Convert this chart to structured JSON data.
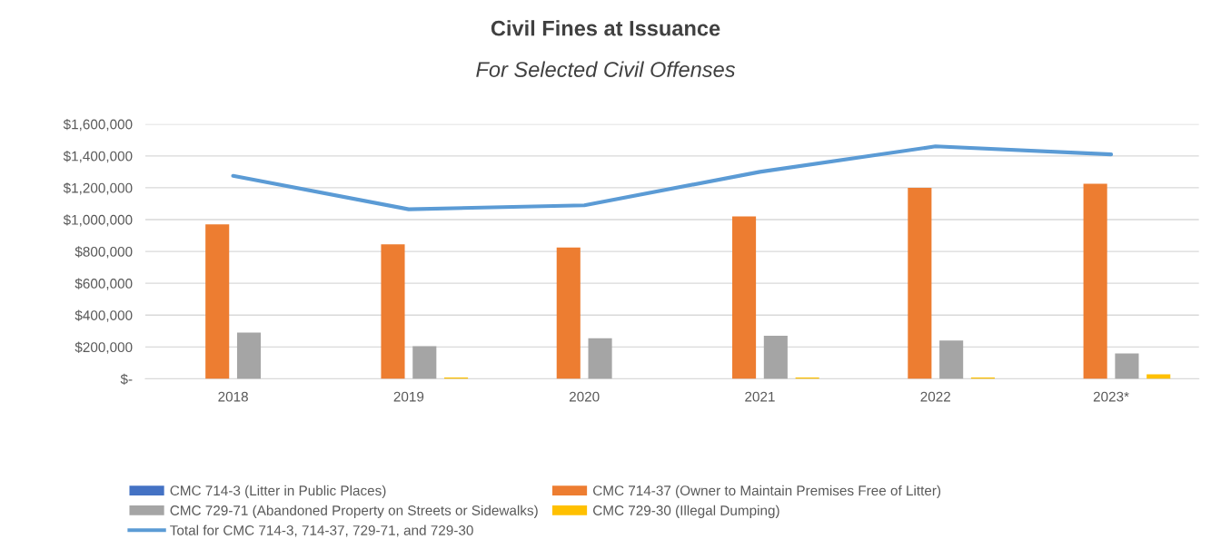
{
  "chart_data": {
    "type": "bar",
    "title": "Civil Fines at Issuance",
    "subtitle": "For Selected Civil Offenses",
    "categories": [
      "2018",
      "2019",
      "2020",
      "2021",
      "2022",
      "2023*"
    ],
    "series": [
      {
        "name": "CMC 714-3 (Litter in Public Places)",
        "color": "#4472c4",
        "values": [
          0,
          0,
          0,
          0,
          0,
          0
        ]
      },
      {
        "name": "CMC 714-37 (Owner to Maintain Premises Free of Litter)",
        "color": "#ed7d31",
        "values": [
          970000,
          845000,
          825000,
          1020000,
          1200000,
          1225000
        ]
      },
      {
        "name": "CMC 729-71 (Abandoned Property on Streets or Sidewalks)",
        "color": "#a5a5a5",
        "values": [
          290000,
          205000,
          255000,
          270000,
          240000,
          160000
        ]
      },
      {
        "name": "CMC 729-30 (Illegal Dumping)",
        "color": "#ffc000",
        "values": [
          0,
          8000,
          0,
          8000,
          8000,
          28000
        ]
      },
      {
        "name": "Total for CMC 714-3, 714-37, 729-71, and 729-30",
        "type": "line",
        "color": "#5b9bd5",
        "values": [
          1275000,
          1065000,
          1090000,
          1300000,
          1460000,
          1410000
        ]
      }
    ],
    "ylim": [
      0,
      1600000
    ],
    "yticks": [
      {
        "value": 0,
        "label": "$-"
      },
      {
        "value": 200000,
        "label": "$200,000"
      },
      {
        "value": 400000,
        "label": "$400,000"
      },
      {
        "value": 600000,
        "label": "$600,000"
      },
      {
        "value": 800000,
        "label": "$800,000"
      },
      {
        "value": 1000000,
        "label": "$1,000,000"
      },
      {
        "value": 1200000,
        "label": "$1,200,000"
      },
      {
        "value": 1400000,
        "label": "$1,400,000"
      },
      {
        "value": 1600000,
        "label": "$1,600,000"
      }
    ],
    "grid": "y",
    "legend": "bottom"
  }
}
